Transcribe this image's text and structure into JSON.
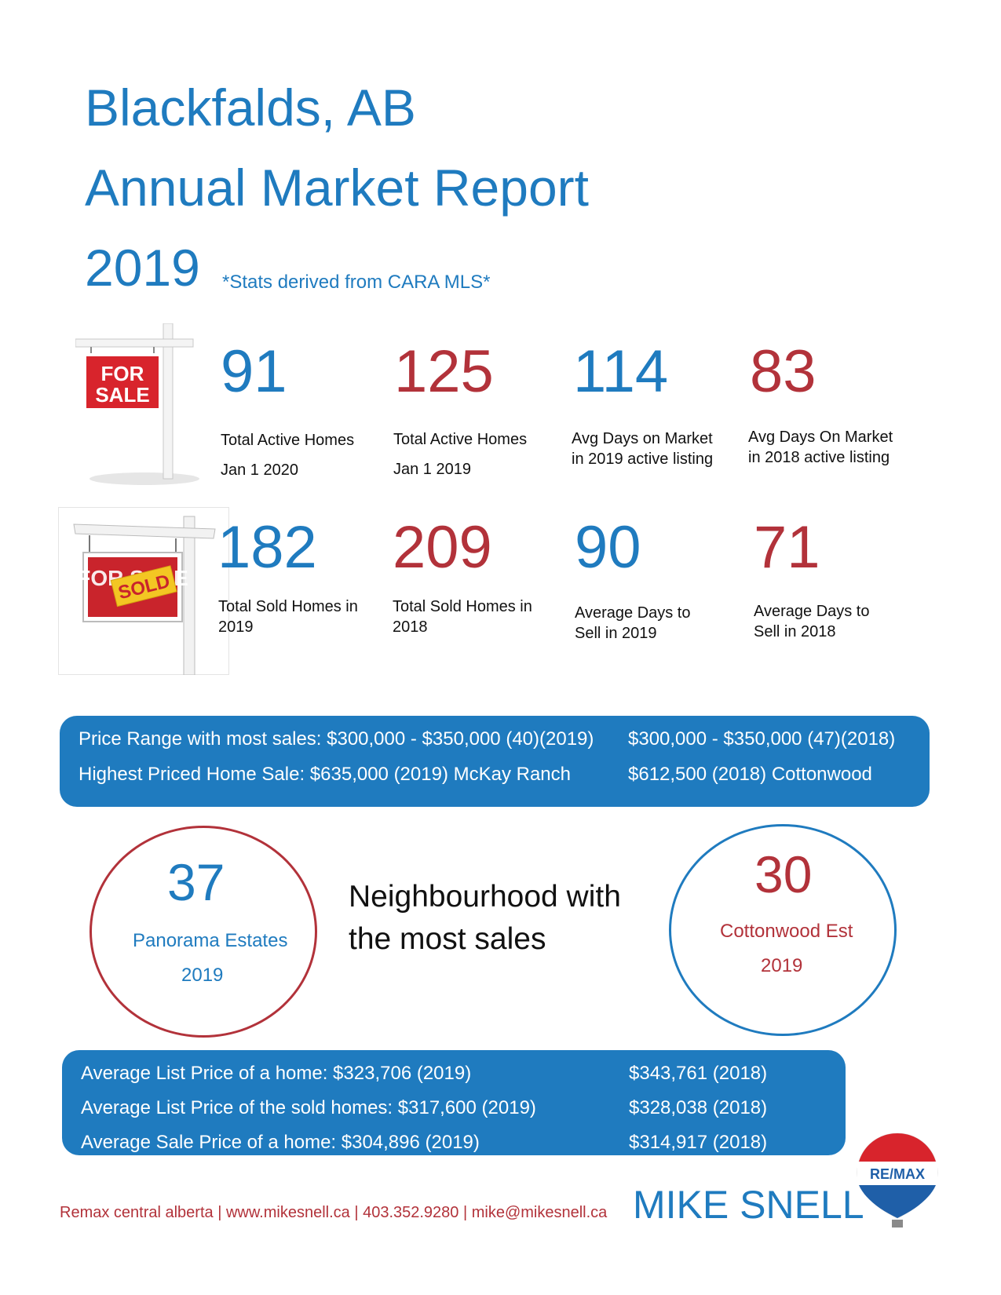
{
  "header": {
    "location": "Blackfalds, AB",
    "report_title": "Annual Market Report",
    "year": "2019",
    "source_note": "*Stats derived from CARA MLS*"
  },
  "colors": {
    "blue": "#1f7bbf",
    "red": "#b2323a"
  },
  "stats_active": [
    {
      "value": "91",
      "line1": "Total Active Homes",
      "line2": "Jan 1 2020",
      "color": "blue"
    },
    {
      "value": "125",
      "line1": "Total Active Homes",
      "line2": "Jan 1 2019",
      "color": "red"
    },
    {
      "value": "114",
      "line1": "Avg Days on Market",
      "line2": "in 2019 active listing",
      "color": "blue"
    },
    {
      "value": "83",
      "line1": "Avg Days On Market",
      "line2": "in 2018 active listing",
      "color": "red"
    }
  ],
  "stats_sold": [
    {
      "value": "182",
      "line1": "Total Sold Homes in",
      "line2": "2019",
      "color": "blue"
    },
    {
      "value": "209",
      "line1": "Total Sold Homes in",
      "line2": "2018",
      "color": "red"
    },
    {
      "value": "90",
      "line1": "Average Days to",
      "line2": "Sell in 2019",
      "color": "blue"
    },
    {
      "value": "71",
      "line1": "Average Days to",
      "line2": "Sell in 2018",
      "color": "red"
    }
  ],
  "signs": {
    "for_sale_text": [
      "FOR",
      "SALE"
    ],
    "sold_text": "SOLD",
    "faded_text": "FOR SALE"
  },
  "price_panel": {
    "row1_left": "Price Range with most sales: $300,000 - $350,000 (40)(2019)",
    "row1_right": "$300,000 - $350,000 (47)(2018)",
    "row2_left": "Highest Priced Home Sale: $635,000 (2019) McKay Ranch",
    "row2_right": "$612,500 (2018) Cottonwood"
  },
  "neighbourhood": {
    "left": {
      "value": "37",
      "name": "Panorama Estates",
      "year": "2019"
    },
    "heading_line1": "Neighbourhood with",
    "heading_line2": "the most sales",
    "right": {
      "value": "30",
      "name": "Cottonwood Est",
      "year": "2019"
    }
  },
  "avg_panel": {
    "rows": [
      {
        "left": "Average List Price of a home:   $323,706 (2019)",
        "right": "$343,761 (2018)"
      },
      {
        "left": "Average List Price of the sold homes: $317,600 (2019)",
        "right": "$328,038 (2018)"
      },
      {
        "left": "Average Sale Price of a home: $304,896 (2019)",
        "right": "$314,917 (2018)"
      }
    ]
  },
  "footer": {
    "contact": "Remax central alberta | www.mikesnell.ca | 403.352.9280 | mike@mikesnell.ca",
    "agent_name": "MIKE SNELL",
    "brand": "RE/MAX"
  }
}
